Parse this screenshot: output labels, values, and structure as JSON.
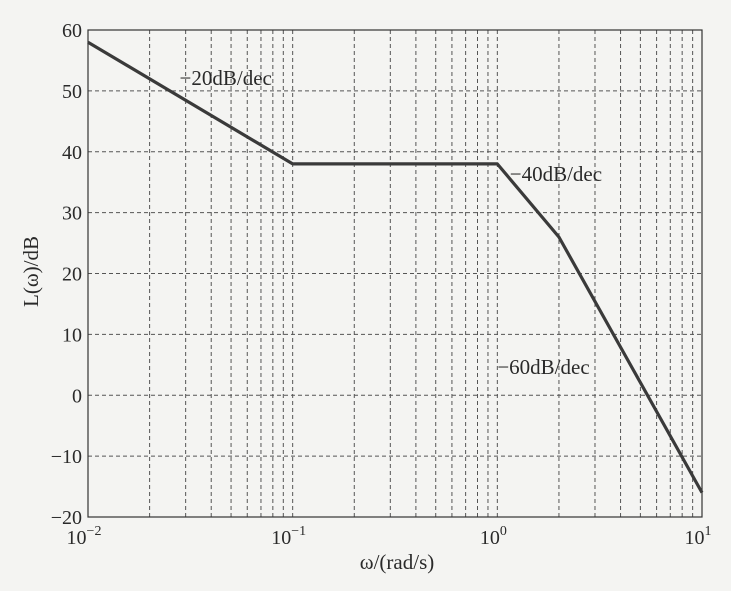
{
  "chart_data": {
    "type": "line",
    "xscale": "log",
    "xlim": [
      0.01,
      10
    ],
    "ylim": [
      -20,
      60
    ],
    "grid": true,
    "xlabel": "ω/(rad/s)",
    "ylabel": "L(ω)/dB",
    "x_ticks": [
      {
        "value": 0.01,
        "base": "10",
        "exp": "−2"
      },
      {
        "value": 0.1,
        "base": "10",
        "exp": "−1"
      },
      {
        "value": 1,
        "base": "10",
        "exp": "0"
      },
      {
        "value": 10,
        "base": "10",
        "exp": "1"
      }
    ],
    "y_ticks": [
      {
        "value": 60,
        "label": "60"
      },
      {
        "value": 50,
        "label": "50"
      },
      {
        "value": 40,
        "label": "40"
      },
      {
        "value": 30,
        "label": "30"
      },
      {
        "value": 20,
        "label": "20"
      },
      {
        "value": 10,
        "label": "10"
      },
      {
        "value": 0,
        "label": "0"
      },
      {
        "value": -10,
        "label": "−10"
      },
      {
        "value": -20,
        "label": "−20"
      }
    ],
    "series": [
      {
        "x": [
          0.01,
          0.1,
          1,
          2,
          10
        ],
        "y": [
          58,
          38,
          38,
          26,
          -16
        ]
      }
    ],
    "annotations": [
      {
        "text": "−20dB/dec",
        "x": 0.028,
        "y": 51
      },
      {
        "text": "−40dB/dec",
        "x": 1.15,
        "y": 35.2
      },
      {
        "text": "−60dB/dec",
        "x": 1.0,
        "y": 3.5
      }
    ],
    "line_color": "#3a3a3a"
  }
}
